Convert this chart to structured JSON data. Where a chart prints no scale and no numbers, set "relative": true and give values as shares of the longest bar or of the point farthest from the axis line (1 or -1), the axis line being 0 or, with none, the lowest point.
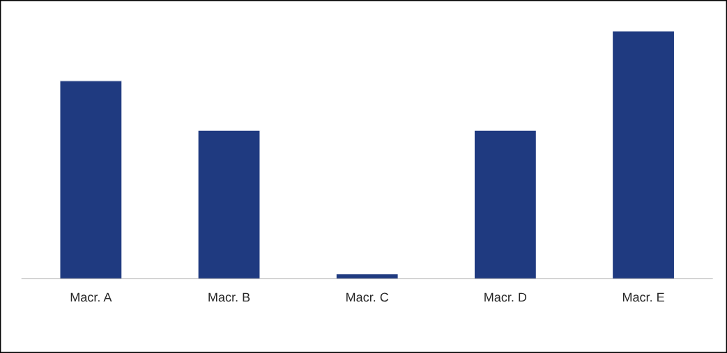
{
  "chart_data": {
    "type": "bar",
    "relative": true,
    "categories": [
      "Macr. A",
      "Macr. B",
      "Macr. C",
      "Macr. D",
      "Macr. E"
    ],
    "values": [
      0.8,
      0.6,
      0.02,
      0.6,
      1.0
    ],
    "color": "#1f3a80",
    "grid": false,
    "legend": false
  }
}
